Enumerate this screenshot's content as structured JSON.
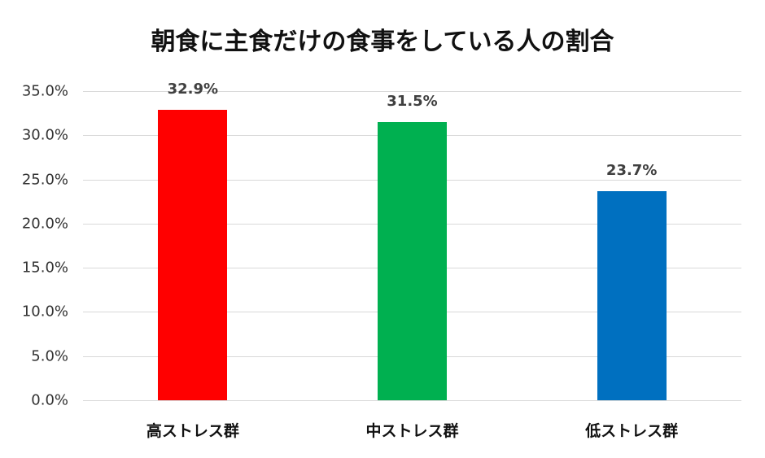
{
  "chart_data": {
    "type": "bar",
    "title": "朝食に主食だけの食事をしている人の割合",
    "xlabel": "",
    "ylabel": "",
    "categories": [
      "高ストレス群",
      "中ストレス群",
      "低ストレス群"
    ],
    "values": [
      32.9,
      31.5,
      23.7
    ],
    "value_labels": [
      "32.9%",
      "31.5%",
      "23.7%"
    ],
    "colors": [
      "#ff0000",
      "#00b050",
      "#0070c0"
    ],
    "ylim": [
      0,
      35
    ],
    "yticks": [
      "0.0%",
      "5.0%",
      "10.0%",
      "15.0%",
      "20.0%",
      "25.0%",
      "30.0%",
      "35.0%"
    ],
    "grid": true,
    "legend": "none"
  }
}
